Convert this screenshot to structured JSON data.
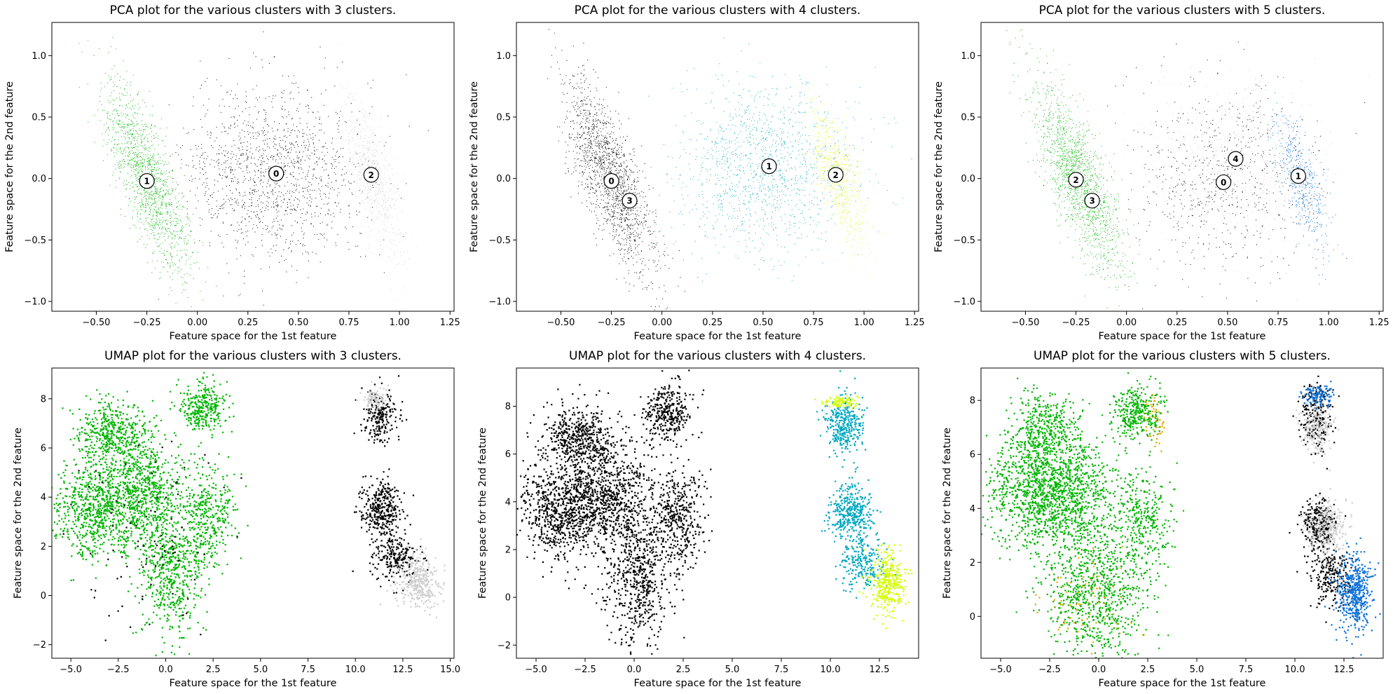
{
  "figure": {
    "title": ""
  },
  "colors": {
    "c_black": "#000000",
    "c_green": "#00b400",
    "c_gray": "#cfcfcf",
    "c_cyan": "#00a7c0",
    "c_yellow": "#d5ff00",
    "c_blue": "#0a6fd6",
    "c_gold": "#e0a800"
  },
  "chart_data": [
    {
      "id": "pca3",
      "type": "scatter",
      "title": "PCA plot for the various clusters with 3 clusters.",
      "xlabel": "Feature space for the 1st feature",
      "ylabel": "Feature space for the 2nd feature",
      "xlim": [
        -0.72,
        1.27
      ],
      "ylim": [
        -1.08,
        1.27
      ],
      "xticks": [
        -0.5,
        -0.25,
        0.0,
        0.25,
        0.5,
        0.75,
        1.0,
        1.25
      ],
      "xtick_labels": [
        "−0.50",
        "−0.25",
        "0.00",
        "0.25",
        "0.50",
        "0.75",
        "1.00",
        "1.25"
      ],
      "yticks": [
        -1.0,
        -0.5,
        0.0,
        0.5,
        1.0
      ],
      "ytick_labels": [
        "−1.0",
        "−0.5",
        "0.0",
        "0.5",
        "1.0"
      ],
      "series": [
        {
          "cluster": 0,
          "color": "c_black",
          "size": 1.0,
          "n": 1400,
          "points": [
            {
              "cx": 0.38,
              "cy": 0.05,
              "sx": 0.22,
              "sy": 0.35,
              "rho": 0.0,
              "w": 1
            }
          ]
        },
        {
          "cluster": 1,
          "color": "c_green",
          "size": 1.0,
          "n": 1400,
          "points": [
            {
              "cx": -0.25,
              "cy": 0.0,
              "sx": 0.1,
              "sy": 0.38,
              "rho": -0.75,
              "w": 1
            }
          ]
        },
        {
          "cluster": 2,
          "color": "c_gray",
          "size": 1.0,
          "n": 650,
          "points": [
            {
              "cx": 0.87,
              "cy": 0.0,
              "sx": 0.07,
              "sy": 0.3,
              "rho": -0.7,
              "w": 1
            }
          ]
        }
      ],
      "centers": [
        {
          "label": "0",
          "x": 0.39,
          "y": 0.04
        },
        {
          "label": "1",
          "x": -0.25,
          "y": -0.02
        },
        {
          "label": "2",
          "x": 0.86,
          "y": 0.03
        }
      ]
    },
    {
      "id": "pca4",
      "type": "scatter",
      "title": "PCA plot for the various clusters with 4 clusters.",
      "xlabel": "Feature space for the 1st feature",
      "ylabel": "Feature space for the 2nd feature",
      "xlim": [
        -0.72,
        1.27
      ],
      "ylim": [
        -1.08,
        1.27
      ],
      "xticks": [
        -0.5,
        -0.25,
        0.0,
        0.25,
        0.5,
        0.75,
        1.0,
        1.25
      ],
      "xtick_labels": [
        "−0.50",
        "−0.25",
        "0.00",
        "0.25",
        "0.50",
        "0.75",
        "1.00",
        "1.25"
      ],
      "yticks": [
        -1.0,
        -0.5,
        0.0,
        0.5,
        1.0
      ],
      "ytick_labels": [
        "−1.0",
        "−0.5",
        "0.0",
        "0.5",
        "1.0"
      ],
      "series": [
        {
          "cluster": 0,
          "color": "c_black",
          "size": 1.0,
          "n": 1600,
          "points": [
            {
              "cx": -0.26,
              "cy": 0.02,
              "sx": 0.11,
              "sy": 0.38,
              "rho": -0.75,
              "w": 1
            }
          ]
        },
        {
          "cluster": 1,
          "color": "c_cyan",
          "size": 1.0,
          "n": 1300,
          "points": [
            {
              "cx": 0.5,
              "cy": 0.08,
              "sx": 0.22,
              "sy": 0.33,
              "rho": 0.0,
              "w": 1
            }
          ]
        },
        {
          "cluster": 2,
          "color": "c_yellow",
          "size": 1.0,
          "n": 600,
          "points": [
            {
              "cx": 0.87,
              "cy": 0.02,
              "sx": 0.07,
              "sy": 0.28,
              "rho": -0.7,
              "w": 1
            }
          ]
        }
      ],
      "centers": [
        {
          "label": "0",
          "x": -0.25,
          "y": -0.02
        },
        {
          "label": "1",
          "x": 0.53,
          "y": 0.1
        },
        {
          "label": "2",
          "x": 0.86,
          "y": 0.03
        },
        {
          "label": "3",
          "x": -0.16,
          "y": -0.18
        }
      ]
    },
    {
      "id": "pca5",
      "type": "scatter",
      "title": "PCA plot for the various clusters with 5 clusters.",
      "xlabel": "Feature space for the 1st feature",
      "ylabel": "Feature space for the 2nd feature",
      "xlim": [
        -0.72,
        1.27
      ],
      "ylim": [
        -1.08,
        1.27
      ],
      "xticks": [
        -0.5,
        -0.25,
        0.0,
        0.25,
        0.5,
        0.75,
        1.0,
        1.25
      ],
      "xtick_labels": [
        "−0.50",
        "−0.25",
        "0.00",
        "0.25",
        "0.50",
        "0.75",
        "1.00",
        "1.25"
      ],
      "yticks": [
        -1.0,
        -0.5,
        0.0,
        0.5,
        1.0
      ],
      "ytick_labels": [
        "−1.0",
        "−0.5",
        "0.0",
        "0.5",
        "1.0"
      ],
      "series": [
        {
          "cluster": 0,
          "color": "c_black",
          "size": 1.0,
          "n": 700,
          "points": [
            {
              "cx": 0.45,
              "cy": 0.0,
              "sx": 0.23,
              "sy": 0.36,
              "rho": 0.0,
              "w": 1
            }
          ]
        },
        {
          "cluster": 4,
          "color": "c_gray",
          "size": 1.0,
          "n": 700,
          "points": [
            {
              "cx": 0.55,
              "cy": 0.12,
              "sx": 0.2,
              "sy": 0.33,
              "rho": 0.0,
              "w": 1
            }
          ]
        },
        {
          "cluster": 2,
          "color": "c_green",
          "size": 1.0,
          "n": 1500,
          "points": [
            {
              "cx": -0.24,
              "cy": 0.0,
              "sx": 0.11,
              "sy": 0.38,
              "rho": -0.75,
              "w": 1
            }
          ]
        },
        {
          "cluster": 1,
          "color": "c_blue",
          "size": 1.0,
          "n": 550,
          "points": [
            {
              "cx": 0.86,
              "cy": 0.0,
              "sx": 0.07,
              "sy": 0.28,
              "rho": -0.7,
              "w": 1
            }
          ]
        }
      ],
      "centers": [
        {
          "label": "0",
          "x": 0.48,
          "y": -0.03
        },
        {
          "label": "1",
          "x": 0.85,
          "y": 0.02
        },
        {
          "label": "2",
          "x": -0.25,
          "y": -0.01
        },
        {
          "label": "3",
          "x": -0.17,
          "y": -0.18
        },
        {
          "label": "4",
          "x": 0.54,
          "y": 0.16
        }
      ]
    },
    {
      "id": "umap3",
      "type": "scatter",
      "title": "UMAP plot for the various clusters with 3 clusters.",
      "xlabel": "Feature space for the 1st feature",
      "ylabel": "Feature space for the 2nd feature",
      "xlim": [
        -6.0,
        15.2
      ],
      "ylim": [
        -2.55,
        9.25
      ],
      "xticks": [
        -5.0,
        -2.5,
        0.0,
        2.5,
        5.0,
        7.5,
        10.0,
        12.5,
        15.0
      ],
      "xtick_labels": [
        "−5.0",
        "−2.5",
        "0.0",
        "2.5",
        "5.0",
        "7.5",
        "10.0",
        "12.5",
        "15.0"
      ],
      "yticks": [
        -2,
        0,
        2,
        4,
        6,
        8
      ],
      "ytick_labels": [
        "−2",
        "0",
        "2",
        "4",
        "6",
        "8"
      ],
      "series": [
        {
          "cluster": 1,
          "color": "c_green",
          "size": 2.2,
          "n": 3200,
          "points": [
            {
              "cx": -2.8,
              "cy": 6.6,
              "sx": 0.9,
              "sy": 0.7,
              "rho": 0.0,
              "w": 0.15
            },
            {
              "cx": -3.6,
              "cy": 3.6,
              "sx": 1.2,
              "sy": 1.0,
              "rho": 0.0,
              "w": 0.25
            },
            {
              "cx": -1.2,
              "cy": 4.3,
              "sx": 1.1,
              "sy": 1.1,
              "rho": 0.0,
              "w": 0.2
            },
            {
              "cx": 0.2,
              "cy": 1.0,
              "sx": 0.8,
              "sy": 1.3,
              "rho": 0.0,
              "w": 0.18
            },
            {
              "cx": 2.2,
              "cy": 3.2,
              "sx": 0.7,
              "sy": 1.0,
              "rho": 0.0,
              "w": 0.12
            },
            {
              "cx": 1.9,
              "cy": 7.7,
              "sx": 0.6,
              "sy": 0.5,
              "rho": 0.0,
              "w": 0.1
            }
          ]
        },
        {
          "cluster": 0,
          "color": "c_black",
          "size": 2.2,
          "n": 900,
          "points": [
            {
              "cx": 11.3,
              "cy": 7.3,
              "sx": 0.45,
              "sy": 0.55,
              "rho": 0.0,
              "w": 0.25
            },
            {
              "cx": 11.3,
              "cy": 3.5,
              "sx": 0.55,
              "sy": 0.65,
              "rho": 0.0,
              "w": 0.4
            },
            {
              "cx": 12.1,
              "cy": 1.6,
              "sx": 0.55,
              "sy": 0.5,
              "rho": 0.0,
              "w": 0.25
            },
            {
              "cx": -1.0,
              "cy": 2.5,
              "sx": 2.0,
              "sy": 2.0,
              "rho": 0.0,
              "w": 0.1
            }
          ]
        },
        {
          "cluster": 2,
          "color": "c_gray",
          "size": 2.2,
          "n": 450,
          "points": [
            {
              "cx": 13.3,
              "cy": 0.6,
              "sx": 0.55,
              "sy": 0.55,
              "rho": 0.0,
              "w": 0.8
            },
            {
              "cx": 11.0,
              "cy": 8.0,
              "sx": 0.3,
              "sy": 0.2,
              "rho": 0.0,
              "w": 0.2
            }
          ]
        }
      ],
      "centers": []
    },
    {
      "id": "umap4",
      "type": "scatter",
      "title": "UMAP plot for the various clusters with 4 clusters.",
      "xlabel": "Feature space for the 1st feature",
      "ylabel": "Feature space for the 2nd feature",
      "xlim": [
        -6.0,
        14.5
      ],
      "ylim": [
        -2.55,
        9.6
      ],
      "xticks": [
        -5.0,
        -2.5,
        0.0,
        2.5,
        5.0,
        7.5,
        10.0,
        12.5
      ],
      "xtick_labels": [
        "−5.0",
        "−2.5",
        "0.0",
        "2.5",
        "5.0",
        "7.5",
        "10.0",
        "12.5"
      ],
      "yticks": [
        -2,
        0,
        2,
        4,
        6,
        8
      ],
      "ytick_labels": [
        "−2",
        "0",
        "2",
        "4",
        "6",
        "8"
      ],
      "series": [
        {
          "cluster": 0,
          "color": "c_black",
          "size": 2.2,
          "n": 3400,
          "points": [
            {
              "cx": -2.8,
              "cy": 6.7,
              "sx": 0.9,
              "sy": 0.7,
              "rho": 0.0,
              "w": 0.15
            },
            {
              "cx": -3.6,
              "cy": 3.7,
              "sx": 1.2,
              "sy": 1.0,
              "rho": 0.0,
              "w": 0.25
            },
            {
              "cx": -1.2,
              "cy": 4.4,
              "sx": 1.1,
              "sy": 1.1,
              "rho": 0.0,
              "w": 0.2
            },
            {
              "cx": 0.2,
              "cy": 1.0,
              "sx": 0.8,
              "sy": 1.4,
              "rho": 0.0,
              "w": 0.18
            },
            {
              "cx": 2.2,
              "cy": 3.4,
              "sx": 0.7,
              "sy": 1.0,
              "rho": 0.0,
              "w": 0.12
            },
            {
              "cx": 1.6,
              "cy": 7.8,
              "sx": 0.6,
              "sy": 0.6,
              "rho": 0.0,
              "w": 0.1
            }
          ]
        },
        {
          "cluster": 1,
          "color": "c_cyan",
          "size": 2.2,
          "n": 950,
          "points": [
            {
              "cx": 10.7,
              "cy": 7.3,
              "sx": 0.45,
              "sy": 0.6,
              "rho": 0.0,
              "w": 0.35
            },
            {
              "cx": 11.0,
              "cy": 3.6,
              "sx": 0.55,
              "sy": 0.6,
              "rho": 0.0,
              "w": 0.4
            },
            {
              "cx": 11.6,
              "cy": 1.5,
              "sx": 0.6,
              "sy": 0.6,
              "rho": 0.0,
              "w": 0.25
            }
          ]
        },
        {
          "cluster": 2,
          "color": "c_yellow",
          "size": 2.2,
          "n": 450,
          "points": [
            {
              "cx": 12.9,
              "cy": 0.7,
              "sx": 0.45,
              "sy": 0.65,
              "rho": 0.0,
              "w": 0.8
            },
            {
              "cx": 10.5,
              "cy": 8.2,
              "sx": 0.4,
              "sy": 0.12,
              "rho": 0.0,
              "w": 0.2
            }
          ]
        }
      ],
      "centers": []
    },
    {
      "id": "umap5",
      "type": "scatter",
      "title": "UMAP plot for the various clusters with 5 clusters.",
      "xlabel": "Feature space for the 1st feature",
      "ylabel": "Feature space for the 2nd feature",
      "xlim": [
        -6.0,
        14.5
      ],
      "ylim": [
        -1.55,
        9.2
      ],
      "xticks": [
        -5.0,
        -2.5,
        0.0,
        2.5,
        5.0,
        7.5,
        10.0,
        12.5
      ],
      "xtick_labels": [
        "−5.0",
        "−2.5",
        "0.0",
        "2.5",
        "5.0",
        "7.5",
        "10.0",
        "12.5"
      ],
      "yticks": [
        0,
        2,
        4,
        6,
        8
      ],
      "ytick_labels": [
        "0",
        "2",
        "4",
        "6",
        "8"
      ],
      "series": [
        {
          "cluster": 2,
          "color": "c_green",
          "size": 2.2,
          "n": 3400,
          "points": [
            {
              "cx": -2.8,
              "cy": 6.8,
              "sx": 0.9,
              "sy": 0.7,
              "rho": 0.0,
              "w": 0.15
            },
            {
              "cx": -3.3,
              "cy": 4.5,
              "sx": 1.2,
              "sy": 0.9,
              "rho": 0.0,
              "w": 0.25
            },
            {
              "cx": -1.2,
              "cy": 4.5,
              "sx": 1.0,
              "sy": 1.0,
              "rho": 0.0,
              "w": 0.18
            },
            {
              "cx": -0.2,
              "cy": 1.0,
              "sx": 1.3,
              "sy": 1.1,
              "rho": 0.0,
              "w": 0.25
            },
            {
              "cx": 2.2,
              "cy": 3.6,
              "sx": 0.7,
              "sy": 0.9,
              "rho": 0.0,
              "w": 0.1
            },
            {
              "cx": 1.9,
              "cy": 7.6,
              "sx": 0.6,
              "sy": 0.5,
              "rho": 0.0,
              "w": 0.1
            }
          ]
        },
        {
          "cluster": 3,
          "color": "c_gold",
          "size": 2.2,
          "n": 120,
          "points": [
            {
              "cx": -0.5,
              "cy": 0.6,
              "sx": 1.2,
              "sy": 0.9,
              "rho": 0.0,
              "w": 0.6
            },
            {
              "cx": 2.8,
              "cy": 7.2,
              "sx": 0.4,
              "sy": 0.5,
              "rho": 0.0,
              "w": 0.4
            }
          ]
        },
        {
          "cluster": 0,
          "color": "c_black",
          "size": 2.2,
          "n": 750,
          "points": [
            {
              "cx": 11.0,
              "cy": 7.4,
              "sx": 0.4,
              "sy": 0.6,
              "rho": 0.0,
              "w": 0.3
            },
            {
              "cx": 11.2,
              "cy": 3.4,
              "sx": 0.45,
              "sy": 0.5,
              "rho": 0.0,
              "w": 0.4
            },
            {
              "cx": 11.8,
              "cy": 1.5,
              "sx": 0.5,
              "sy": 0.5,
              "rho": 0.0,
              "w": 0.3
            }
          ]
        },
        {
          "cluster": 4,
          "color": "c_gray",
          "size": 2.2,
          "n": 450,
          "points": [
            {
              "cx": 11.1,
              "cy": 7.0,
              "sx": 0.4,
              "sy": 0.5,
              "rho": 0.0,
              "w": 0.4
            },
            {
              "cx": 11.6,
              "cy": 3.3,
              "sx": 0.5,
              "sy": 0.5,
              "rho": 0.0,
              "w": 0.6
            }
          ]
        },
        {
          "cluster": 1,
          "color": "c_blue",
          "size": 2.2,
          "n": 600,
          "points": [
            {
              "cx": 13.0,
              "cy": 0.9,
              "sx": 0.45,
              "sy": 0.7,
              "rho": 0.0,
              "w": 0.8
            },
            {
              "cx": 11.1,
              "cy": 8.2,
              "sx": 0.4,
              "sy": 0.2,
              "rho": 0.0,
              "w": 0.2
            }
          ]
        }
      ],
      "centers": []
    }
  ]
}
